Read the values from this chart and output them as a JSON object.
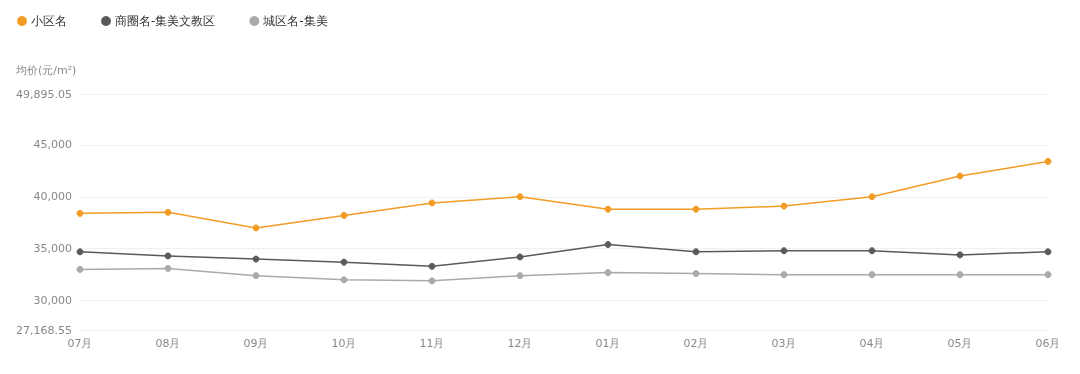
{
  "chart_data": {
    "type": "line",
    "ylabel": "均价(元/m²)",
    "categories": [
      "07月",
      "08月",
      "09月",
      "10月",
      "11月",
      "12月",
      "01月",
      "02月",
      "03月",
      "04月",
      "05月",
      "06月"
    ],
    "series": [
      {
        "name": "小区名",
        "color": "#f39c25",
        "values": [
          38400,
          38500,
          37000,
          38200,
          39400,
          40000,
          38800,
          38800,
          39100,
          40000,
          42000,
          43400
        ]
      },
      {
        "name": "商圈名-集美文教区",
        "color": "#5a5a5a",
        "values": [
          34700,
          34300,
          34000,
          33700,
          33300,
          34200,
          35400,
          34700,
          34800,
          34800,
          34400,
          34700
        ]
      },
      {
        "name": "城区名-集美",
        "color": "#aaaaaa",
        "values": [
          33000,
          33100,
          32400,
          32000,
          31900,
          32400,
          32700,
          32600,
          32500,
          32500,
          32500,
          32500
        ]
      }
    ],
    "ylim": [
      27168.55,
      49895.05
    ],
    "yticks": [
      {
        "value": 27168.55,
        "label": "27,168.55"
      },
      {
        "value": 30000,
        "label": "30,000"
      },
      {
        "value": 35000,
        "label": "35,000"
      },
      {
        "value": 40000,
        "label": "40,000"
      },
      {
        "value": 45000,
        "label": "45,000"
      },
      {
        "value": 49895.05,
        "label": "49,895.05"
      }
    ],
    "grid": "y",
    "legend": "top left",
    "marker": "circle",
    "line_style": "solid"
  }
}
